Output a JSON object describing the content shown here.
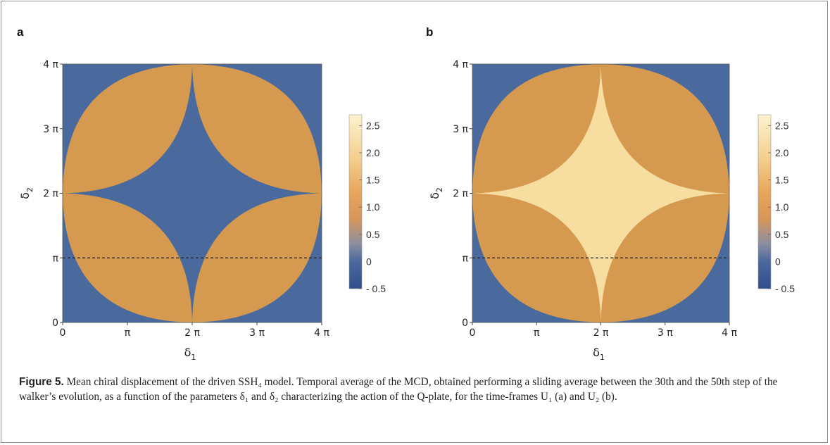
{
  "chart_data": [
    {
      "type": "heatmap",
      "panel_label": "a",
      "xlabel": "δ",
      "xlabel_sub": "1",
      "ylabel": "δ",
      "ylabel_sub": "2",
      "xlim": [
        0,
        4
      ],
      "ylim": [
        0,
        4
      ],
      "axis_unit": "π",
      "x_tick_labels": [
        "0",
        "π",
        "2 π",
        "3 π",
        "4 π"
      ],
      "y_tick_labels": [
        "0",
        "π",
        "2 π",
        "3 π",
        "4 π"
      ],
      "colorbar": {
        "range": [
          -0.5,
          2.7
        ],
        "tick_labels": [
          "2.5",
          "2.0",
          "1.5",
          "1.0",
          "0.5",
          "0",
          "- 0.5"
        ],
        "tick_values": [
          2.5,
          2.0,
          1.5,
          1.0,
          0.5,
          0,
          -0.5
        ]
      },
      "dashed_line_y": 1,
      "regions": {
        "background": -0.5,
        "lobes": 1.2,
        "center_star": -0.5
      },
      "colors": {
        "background": "#4a6a9e",
        "lobes": "#d59a4f",
        "star": "#4a6a9e"
      }
    },
    {
      "type": "heatmap",
      "panel_label": "b",
      "xlabel": "δ",
      "xlabel_sub": "1",
      "ylabel": "δ",
      "ylabel_sub": "2",
      "xlim": [
        0,
        4
      ],
      "ylim": [
        0,
        4
      ],
      "axis_unit": "π",
      "x_tick_labels": [
        "0",
        "π",
        "2 π",
        "3 π",
        "4 π"
      ],
      "y_tick_labels": [
        "0",
        "π",
        "2 π",
        "3 π",
        "4 π"
      ],
      "colorbar": {
        "range": [
          -0.5,
          2.7
        ],
        "tick_labels": [
          "2.5",
          "2.0",
          "1.5",
          "1.0",
          "0.5",
          "0",
          "- 0.5"
        ],
        "tick_values": [
          2.5,
          2.0,
          1.5,
          1.0,
          0.5,
          0,
          -0.5
        ]
      },
      "dashed_line_y": 1,
      "regions": {
        "background": -0.5,
        "lobes": 1.2,
        "center_star": 2.4
      },
      "colors": {
        "background": "#4a6a9e",
        "lobes": "#d59a4f",
        "star": "#f7dd9f"
      }
    }
  ],
  "caption": {
    "label": "Figure 5.",
    "text": " Mean chiral displacement of the driven SSH₄ model. Temporal average of the MCD, obtained performing a sliding average between the 30th and the 50th step of the walker’s evolution, as a function of the parameters δ₁ and δ₂ characterizing the action of the Q-plate, for the time-frames U₁ (a) and U₂ (b)."
  }
}
